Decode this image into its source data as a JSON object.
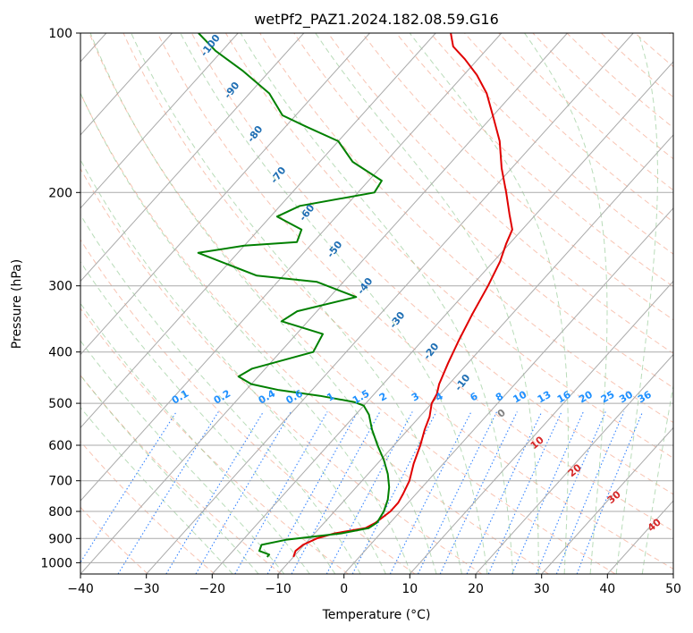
{
  "chart_data": {
    "type": "line",
    "chart_kind": "skew-T log-P diagram",
    "title": "wetPf2_PAZ1.2024.182.08.59.G16",
    "xlabel": "Temperature (°C)",
    "ylabel": "Pressure (hPa)",
    "xlim": [
      -40,
      50
    ],
    "ylim": [
      1050,
      100
    ],
    "y_scale": "log",
    "grid": true,
    "x_ticks": [
      "−40",
      "−30",
      "−20",
      "−10",
      "0",
      "10",
      "20",
      "30",
      "40",
      "50"
    ],
    "x_tick_values": [
      -40,
      -30,
      -20,
      -10,
      0,
      10,
      20,
      30,
      40,
      50
    ],
    "y_ticks": [
      "100",
      "200",
      "300",
      "400",
      "500",
      "600",
      "700",
      "800",
      "900",
      "1000"
    ],
    "y_tick_values": [
      100,
      200,
      300,
      400,
      500,
      600,
      700,
      800,
      900,
      1000
    ],
    "colors": {
      "temperature": "#e00000",
      "dewpoint": "#008000",
      "isotherm": "#aaaaaa",
      "dry_adiabat": "#f4a58a",
      "moist_adiabat": "#7fbf7f",
      "mixing_ratio": "#1f77ff",
      "dry_adiabat_label": "#d62728",
      "moist_adiabat_label": "#1f6fb4",
      "mixing_ratio_label": "#1e90ff",
      "zero_label": "#808080"
    },
    "series": [
      {
        "id": "temperature",
        "points": [
          [
            -10.0,
            975
          ],
          [
            -10.5,
            950
          ],
          [
            -10.2,
            925
          ],
          [
            -9.0,
            900
          ],
          [
            -7.0,
            880
          ],
          [
            -3.0,
            860
          ],
          [
            -2.2,
            840
          ],
          [
            -1.5,
            800
          ],
          [
            -1.5,
            770
          ],
          [
            -2.0,
            740
          ],
          [
            -2.8,
            700
          ],
          [
            -4.5,
            650
          ],
          [
            -6.0,
            600
          ],
          [
            -7.5,
            560
          ],
          [
            -8.5,
            530
          ],
          [
            -10.0,
            500
          ],
          [
            -10.5,
            480
          ],
          [
            -11.5,
            460
          ],
          [
            -13.0,
            420
          ],
          [
            -14.5,
            380
          ],
          [
            -16.0,
            340
          ],
          [
            -17.5,
            300
          ],
          [
            -19.0,
            270
          ],
          [
            -20.5,
            250
          ],
          [
            -21.5,
            235
          ],
          [
            -24.0,
            220
          ],
          [
            -27.5,
            200
          ],
          [
            -31.5,
            180
          ],
          [
            -35.5,
            160
          ],
          [
            -39.5,
            145
          ],
          [
            -44.0,
            130
          ],
          [
            -48.0,
            120
          ],
          [
            -52.0,
            112
          ],
          [
            -55.5,
            106
          ],
          [
            -57.7,
            100
          ]
        ]
      },
      {
        "id": "dewpoint",
        "points": [
          [
            -14.0,
            975
          ],
          [
            -14.0,
            965
          ],
          [
            -16.0,
            950
          ],
          [
            -16.5,
            925
          ],
          [
            -13.5,
            905
          ],
          [
            -6.0,
            880
          ],
          [
            -2.5,
            860
          ],
          [
            -2.0,
            840
          ],
          [
            -2.5,
            800
          ],
          [
            -3.5,
            760
          ],
          [
            -5.0,
            720
          ],
          [
            -7.0,
            680
          ],
          [
            -9.5,
            640
          ],
          [
            -12.5,
            600
          ],
          [
            -15.5,
            560
          ],
          [
            -18.0,
            525
          ],
          [
            -20.0,
            505
          ],
          [
            -22.0,
            497
          ],
          [
            -28.0,
            484
          ],
          [
            -35.0,
            472
          ],
          [
            -40.0,
            460
          ],
          [
            -43.0,
            445
          ],
          [
            -42.0,
            430
          ],
          [
            -35.0,
            400
          ],
          [
            -36.0,
            370
          ],
          [
            -44.0,
            350
          ],
          [
            -43.0,
            335
          ],
          [
            -36.0,
            315
          ],
          [
            -44.0,
            295
          ],
          [
            -54.0,
            287
          ],
          [
            -66.0,
            260
          ],
          [
            -60.0,
            252
          ],
          [
            -52.5,
            248
          ],
          [
            -53.5,
            235
          ],
          [
            -59.0,
            222
          ],
          [
            -57.0,
            212
          ],
          [
            -47.5,
            200
          ],
          [
            -48.0,
            190
          ],
          [
            -55.0,
            175
          ],
          [
            -60.0,
            160
          ],
          [
            -67.0,
            150
          ],
          [
            -72.0,
            143
          ],
          [
            -77.0,
            130
          ],
          [
            -84.0,
            118
          ],
          [
            -91.0,
            108
          ],
          [
            -96.0,
            100
          ]
        ]
      }
    ],
    "dry_adiabat_labels": [
      "0",
      "10",
      "20",
      "30",
      "40"
    ],
    "moist_adiabat_labels": [
      "-100",
      "-90",
      "-80",
      "-70",
      "-60",
      "-50",
      "-40",
      "-30",
      "-20",
      "-10"
    ],
    "mixing_ratio_labels": [
      "0.1",
      "0.2",
      "0.4",
      "0.6",
      "1",
      "1.5",
      "2",
      "3",
      "4",
      "6",
      "8",
      "10",
      "13",
      "16",
      "20",
      "25",
      "30",
      "36"
    ]
  }
}
